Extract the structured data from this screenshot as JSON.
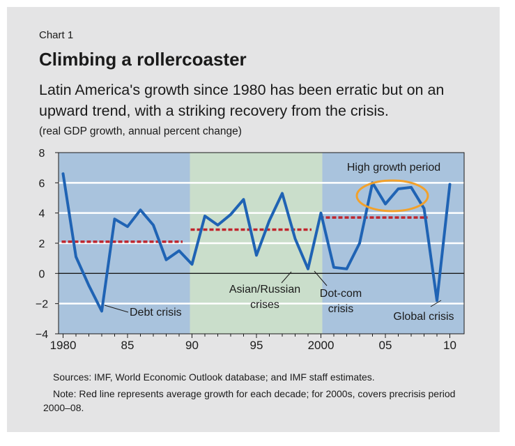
{
  "header": {
    "chart_label": "Chart 1",
    "title": "Climbing a rollercoaster",
    "subtitle": "Latin America's growth since 1980 has been erratic but on an upward trend, with a striking recovery from the crisis.",
    "units": "(real GDP growth, annual percent change)"
  },
  "footer": {
    "sources": "Sources: IMF, World Economic Outlook database; and IMF staff estimates.",
    "note": "Note: Red line represents average growth for each decade; for 2000s, covers precrisis period 2000–08."
  },
  "colors": {
    "line": "#1f63b4",
    "average": "#c0252d",
    "panel_blue": "#a9c3dd",
    "panel_green": "#cadecb",
    "highlight": "#f2a12b"
  },
  "chart_data": {
    "type": "line",
    "x": [
      1980,
      1981,
      1982,
      1983,
      1984,
      1985,
      1986,
      1987,
      1988,
      1989,
      1990,
      1991,
      1992,
      1993,
      1994,
      1995,
      1996,
      1997,
      1998,
      1999,
      2000,
      2001,
      2002,
      2003,
      2004,
      2005,
      2006,
      2007,
      2008,
      2009,
      2010
    ],
    "series": [
      {
        "name": "",
        "values": [
          6.6,
          1.1,
          -0.8,
          -2.5,
          3.6,
          3.1,
          4.2,
          3.2,
          0.9,
          1.5,
          0.6,
          3.8,
          3.2,
          3.9,
          4.9,
          1.2,
          3.5,
          5.3,
          2.3,
          0.3,
          4.0,
          0.4,
          0.3,
          2.0,
          6.0,
          4.6,
          5.6,
          5.7,
          4.3,
          -1.8,
          5.9
        ]
      }
    ],
    "averages": [
      {
        "from": 1980,
        "to": 1989,
        "value": 2.1
      },
      {
        "from": 1990,
        "to": 1999,
        "value": 2.9
      },
      {
        "from": 2000,
        "to": 2008,
        "value": 3.7
      }
    ],
    "periods": [
      {
        "from": 1980,
        "to": 1990,
        "shade": "blue"
      },
      {
        "from": 1990,
        "to": 2000,
        "shade": "green"
      },
      {
        "from": 2000,
        "to": 2010,
        "shade": "blue"
      }
    ],
    "xlim": [
      1980,
      2010
    ],
    "ylim": [
      -4,
      8
    ],
    "yticks": [
      8,
      6,
      4,
      2,
      0,
      -2,
      -4
    ],
    "xticks": [
      {
        "value": 1980,
        "label": "1980"
      },
      {
        "value": 1985,
        "label": "85"
      },
      {
        "value": 1990,
        "label": "90"
      },
      {
        "value": 1995,
        "label": "95"
      },
      {
        "value": 2000,
        "label": "2000"
      },
      {
        "value": 2005,
        "label": "05"
      },
      {
        "value": 2010,
        "label": "10"
      }
    ],
    "grid": true,
    "annotations": {
      "high_growth": "High growth period",
      "debt_crisis": "Debt crisis",
      "asian_russian_1": "Asian/Russian",
      "asian_russian_2": "crises",
      "dotcom_1": "Dot-com",
      "dotcom_2": "crisis",
      "global_crisis": "Global crisis"
    }
  }
}
